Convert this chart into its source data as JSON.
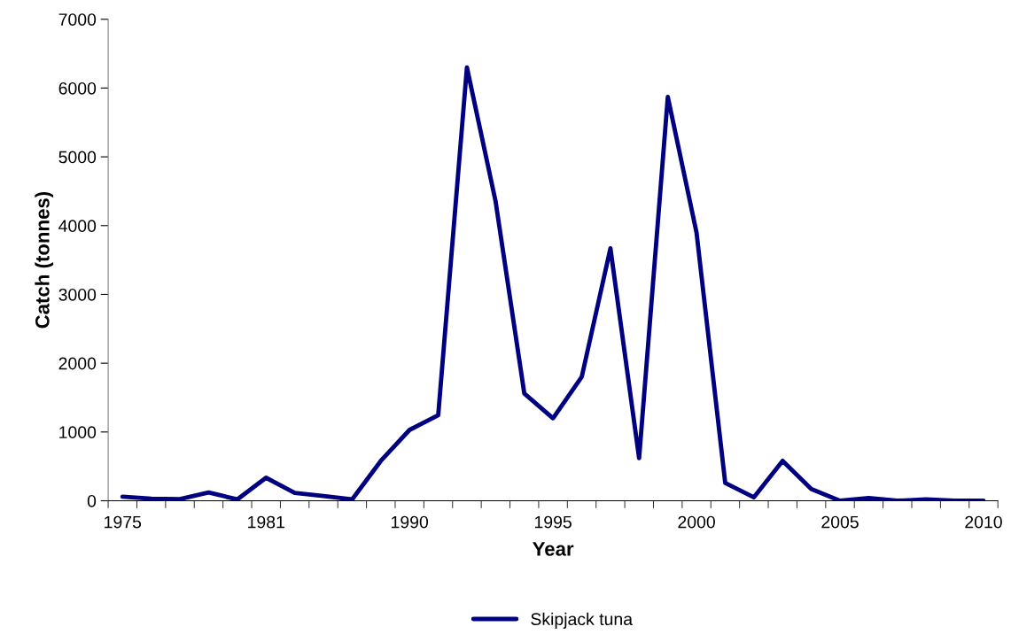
{
  "chart_data": {
    "type": "line",
    "xlabel": "Year",
    "ylabel": "Catch (tonnes)",
    "categories": [
      "1975",
      null,
      null,
      null,
      null,
      "1981",
      null,
      null,
      null,
      null,
      "1990",
      null,
      null,
      null,
      null,
      "1995",
      null,
      null,
      null,
      null,
      "2000",
      null,
      null,
      null,
      null,
      "2005",
      null,
      null,
      null,
      null,
      "2010"
    ],
    "series": [
      {
        "name": "Skipjack tuna",
        "color": "#000080",
        "values": [
          60,
          30,
          25,
          120,
          20,
          335,
          115,
          70,
          20,
          580,
          1030,
          1245,
          6300,
          4350,
          1560,
          1200,
          1800,
          3670,
          620,
          5870,
          3900,
          260,
          50,
          580,
          170,
          0,
          40,
          0,
          20,
          0,
          0
        ]
      }
    ],
    "ylim": [
      0,
      7000
    ],
    "yticks": [
      0,
      1000,
      2000,
      3000,
      4000,
      5000,
      6000,
      7000
    ],
    "grid": false,
    "legend": "bottom",
    "marker": "none",
    "line_style": "solid"
  }
}
